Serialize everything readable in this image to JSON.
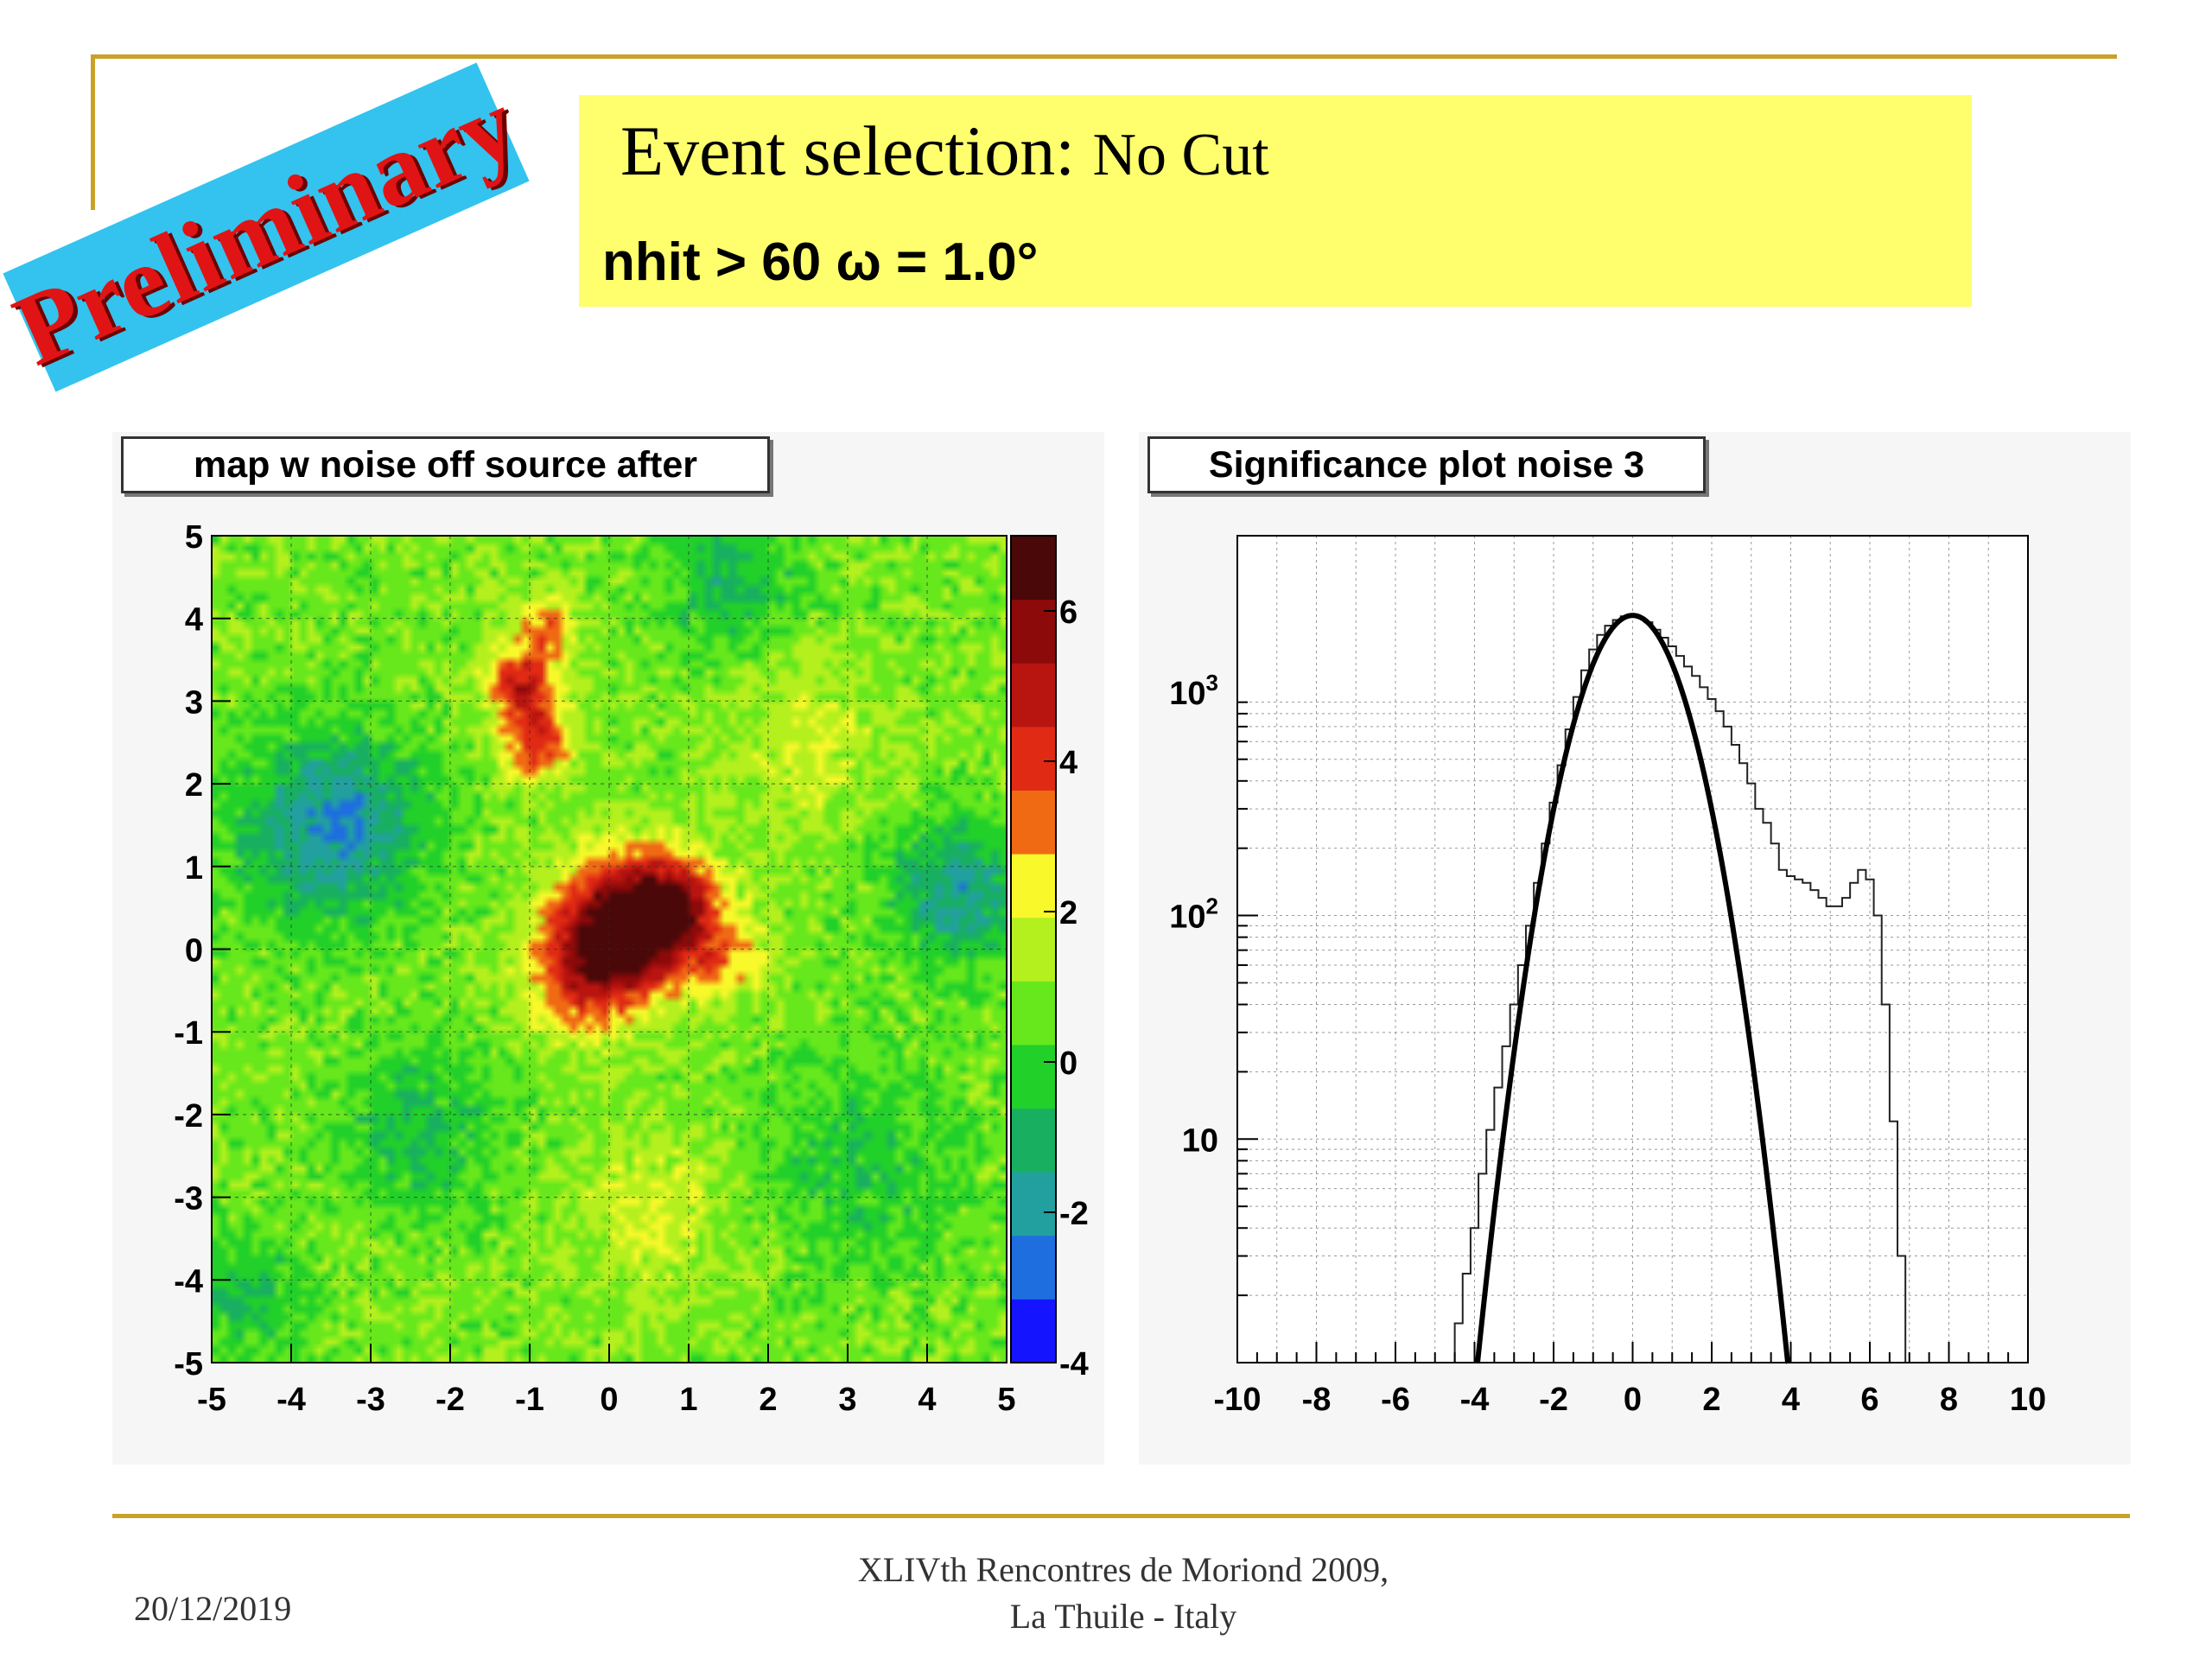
{
  "badge": {
    "text": "Preliminary"
  },
  "header": {
    "title_main": "Event selection:",
    "title_sub": "No Cut",
    "condition": "nhit > 60 ω =  1.0°"
  },
  "colors": {
    "rule": "#c9a227",
    "badge_bg": "#33c3ee",
    "badge_text": "#e01414",
    "title_bg": "#ffff6e"
  },
  "chart_data": [
    {
      "type": "heatmap",
      "title": "map w noise off source after",
      "xlim": [
        -5,
        5
      ],
      "ylim": [
        -5,
        5
      ],
      "x_ticks": [
        -5,
        -4,
        -3,
        -2,
        -1,
        0,
        1,
        2,
        3,
        4,
        5
      ],
      "y_ticks": [
        -5,
        -4,
        -3,
        -2,
        -1,
        0,
        1,
        2,
        3,
        4,
        5
      ],
      "colorbar": {
        "range": [
          -4,
          7
        ],
        "ticks": [
          -4,
          -2,
          0,
          2,
          4,
          6
        ]
      },
      "grid": true,
      "blobs": [
        {
          "x": 0.2,
          "y": 0.3,
          "sigma": 0.55,
          "amp": 6.0
        },
        {
          "x": 0.8,
          "y": 0.5,
          "sigma": 0.45,
          "amp": 3.5
        },
        {
          "x": -0.3,
          "y": -0.3,
          "sigma": 0.5,
          "amp": 3.0
        },
        {
          "x": 1.5,
          "y": -0.1,
          "sigma": 0.35,
          "amp": 1.8
        },
        {
          "x": -1.1,
          "y": 3.2,
          "sigma": 0.3,
          "amp": 4.0
        },
        {
          "x": -0.9,
          "y": 2.5,
          "sigma": 0.3,
          "amp": 3.5
        },
        {
          "x": -0.8,
          "y": 3.9,
          "sigma": 0.25,
          "amp": 2.5
        },
        {
          "x": -3.5,
          "y": 1.5,
          "sigma": 0.8,
          "amp": -3.0
        },
        {
          "x": 4.4,
          "y": 0.7,
          "sigma": 0.6,
          "amp": -2.6
        },
        {
          "x": 1.5,
          "y": 4.5,
          "sigma": 0.6,
          "amp": -1.8
        },
        {
          "x": -2.4,
          "y": -2.2,
          "sigma": 0.7,
          "amp": -1.5
        },
        {
          "x": 3.2,
          "y": -2.6,
          "sigma": 0.9,
          "amp": -1.2
        },
        {
          "x": 0.6,
          "y": -3.2,
          "sigma": 0.7,
          "amp": 1.1
        },
        {
          "x": 2.5,
          "y": 2.5,
          "sigma": 0.7,
          "amp": 1.0
        },
        {
          "x": -4.5,
          "y": -4.2,
          "sigma": 0.5,
          "amp": -1.5
        }
      ]
    },
    {
      "type": "line",
      "title": "Significance plot noise 3",
      "xlim": [
        -10,
        10
      ],
      "x_ticks": [
        -10,
        -8,
        -6,
        -4,
        -2,
        0,
        2,
        4,
        6,
        8,
        10
      ],
      "y_scale": "log",
      "ylim": [
        1,
        5000
      ],
      "y_tick_labels": [
        "10",
        "10^2",
        "10^3"
      ],
      "grid": true,
      "series": [
        {
          "style": "histogram",
          "x": [
            -4.4,
            -4.2,
            -4.0,
            -3.8,
            -3.6,
            -3.4,
            -3.2,
            -3.0,
            -2.8,
            -2.6,
            -2.4,
            -2.2,
            -2.0,
            -1.8,
            -1.6,
            -1.4,
            -1.2,
            -1.0,
            -0.8,
            -0.6,
            -0.4,
            -0.2,
            0.0,
            0.2,
            0.4,
            0.6,
            0.8,
            1.0,
            1.2,
            1.4,
            1.6,
            1.8,
            2.0,
            2.2,
            2.4,
            2.6,
            2.8,
            3.0,
            3.2,
            3.4,
            3.6,
            3.8,
            4.0,
            4.2,
            4.4,
            4.6,
            4.8,
            5.0,
            5.2,
            5.4,
            5.6,
            5.8,
            6.0,
            6.2,
            6.4,
            6.6,
            6.8,
            7.0
          ],
          "values": [
            1.5,
            2.5,
            4,
            7,
            11,
            17,
            26,
            40,
            60,
            90,
            140,
            210,
            320,
            470,
            680,
            950,
            1250,
            1550,
            1800,
            1980,
            2100,
            2180,
            2200,
            2150,
            2050,
            1900,
            1750,
            1600,
            1450,
            1300,
            1180,
            1050,
            930,
            820,
            700,
            580,
            480,
            390,
            300,
            260,
            210,
            160,
            150,
            145,
            140,
            130,
            120,
            110,
            110,
            120,
            140,
            160,
            145,
            100,
            40,
            12,
            3,
            1
          ]
        },
        {
          "style": "fit",
          "function": "gaussian",
          "amplitude": 2200,
          "mean": 0.0,
          "sigma": 1.0
        }
      ]
    }
  ],
  "footer": {
    "date": "20/12/2019",
    "conference_line1": "XLIVth Rencontres de Moriond 2009,",
    "conference_line2": "La Thuile - Italy"
  }
}
